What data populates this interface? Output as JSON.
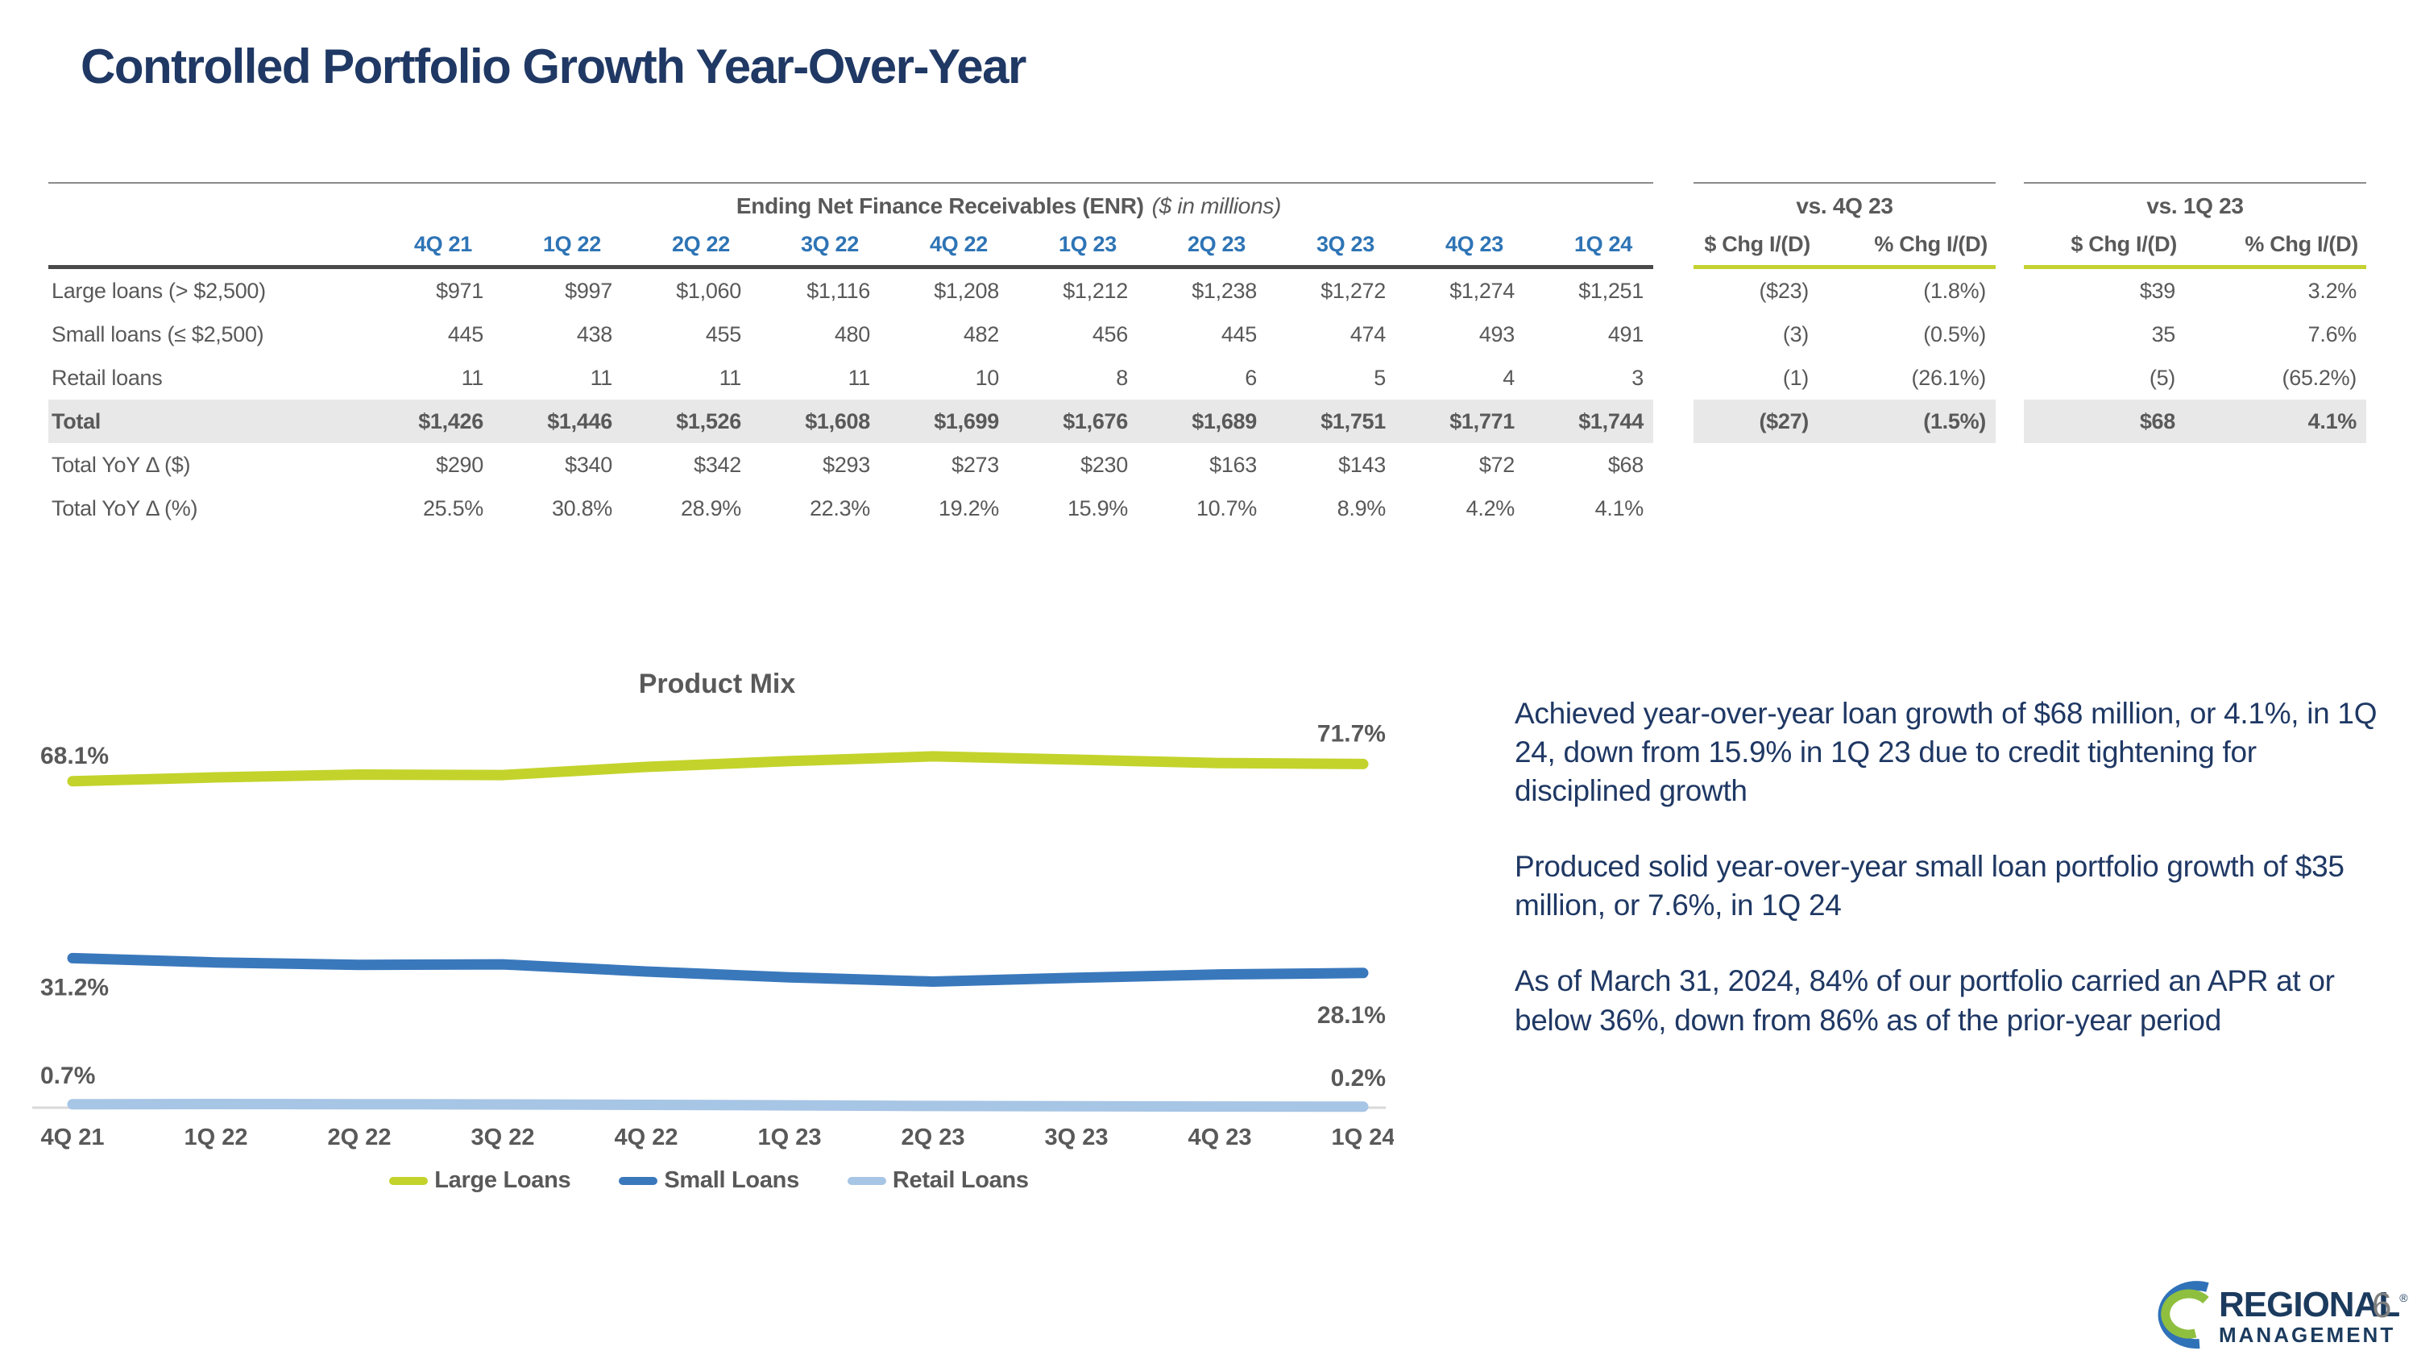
{
  "slide": {
    "title": "Controlled Portfolio Growth Year-Over-Year",
    "page_number": "6"
  },
  "table": {
    "main_header": "Ending Net Finance Receivables (ENR)",
    "main_header_note": "($ in millions)",
    "quarters": [
      "4Q 21",
      "1Q 22",
      "2Q 22",
      "3Q 22",
      "4Q 22",
      "1Q 23",
      "2Q 23",
      "3Q 23",
      "4Q 23",
      "1Q 24"
    ],
    "vs_sections": [
      {
        "title": "vs. 4Q 23",
        "col_headers": [
          "$ Chg I/(D)",
          "% Chg I/(D)"
        ]
      },
      {
        "title": "vs. 1Q 23",
        "col_headers": [
          "$ Chg I/(D)",
          "% Chg I/(D)"
        ]
      }
    ],
    "rows": [
      {
        "label": "Large loans (> $2,500)",
        "style": "normal",
        "values": [
          "$971",
          "$997",
          "$1,060",
          "$1,116",
          "$1,208",
          "$1,212",
          "$1,238",
          "$1,272",
          "$1,274",
          "$1,251"
        ],
        "vs4q23": [
          "($23)",
          "(1.8%)"
        ],
        "vs1q23": [
          "$39",
          "3.2%"
        ]
      },
      {
        "label": "Small loans (≤ $2,500)",
        "style": "normal",
        "values": [
          "445",
          "438",
          "455",
          "480",
          "482",
          "456",
          "445",
          "474",
          "493",
          "491"
        ],
        "vs4q23": [
          "(3)",
          "(0.5%)"
        ],
        "vs1q23": [
          "35",
          "7.6%"
        ]
      },
      {
        "label": "Retail loans",
        "style": "normal",
        "values": [
          "11",
          "11",
          "11",
          "11",
          "10",
          "8",
          "6",
          "5",
          "4",
          "3"
        ],
        "vs4q23": [
          "(1)",
          "(26.1%)"
        ],
        "vs1q23": [
          "(5)",
          "(65.2%)"
        ]
      },
      {
        "label": "Total",
        "style": "total",
        "values": [
          "$1,426",
          "$1,446",
          "$1,526",
          "$1,608",
          "$1,699",
          "$1,676",
          "$1,689",
          "$1,751",
          "$1,771",
          "$1,744"
        ],
        "vs4q23": [
          "($27)",
          "(1.5%)"
        ],
        "vs1q23": [
          "$68",
          "4.1%"
        ]
      },
      {
        "label": "Total YoY Δ ($)",
        "style": "normal",
        "values": [
          "$290",
          "$340",
          "$342",
          "$293",
          "$273",
          "$230",
          "$163",
          "$143",
          "$72",
          "$68"
        ],
        "vs4q23": [
          "",
          ""
        ],
        "vs1q23": [
          "",
          ""
        ]
      },
      {
        "label": "Total YoY Δ (%)",
        "style": "normal",
        "values": [
          "25.5%",
          "30.8%",
          "28.9%",
          "22.3%",
          "19.2%",
          "15.9%",
          "10.7%",
          "8.9%",
          "4.2%",
          "4.1%"
        ],
        "vs4q23": [
          "",
          ""
        ],
        "vs1q23": [
          "",
          ""
        ]
      }
    ]
  },
  "chart_data": {
    "type": "line",
    "title": "Product Mix",
    "categories": [
      "4Q 21",
      "1Q 22",
      "2Q 22",
      "3Q 22",
      "4Q 22",
      "1Q 23",
      "2Q 23",
      "3Q 23",
      "4Q 23",
      "1Q 24"
    ],
    "series": [
      {
        "name": "Large Loans",
        "color": "#c3d32b",
        "values": [
          68.1,
          68.9,
          69.5,
          69.4,
          71.1,
          72.3,
          73.3,
          72.6,
          71.9,
          71.7
        ],
        "start_label": "68.1%",
        "end_label": "71.7%"
      },
      {
        "name": "Small Loans",
        "color": "#3a78bc",
        "values": [
          31.2,
          30.3,
          29.8,
          29.9,
          28.4,
          27.2,
          26.3,
          27.1,
          27.8,
          28.1
        ],
        "start_label": "31.2%",
        "end_label": "28.1%"
      },
      {
        "name": "Retail Loans",
        "color": "#a7c5e5",
        "values": [
          0.7,
          0.76,
          0.72,
          0.68,
          0.59,
          0.48,
          0.36,
          0.29,
          0.23,
          0.2
        ],
        "start_label": "0.7%",
        "end_label": "0.2%"
      }
    ],
    "ylim": [
      0,
      100
    ],
    "grid": false,
    "legend_position": "bottom"
  },
  "bullets": [
    "Achieved year-over-year loan growth of $68 million, or 4.1%, in 1Q 24, down from 15.9% in 1Q 23 due to credit tightening for disciplined growth",
    "Produced solid year-over-year small loan portfolio growth of $35 million, or 7.6%, in 1Q 24",
    "As of March 31, 2024, 84% of our portfolio carried an APR at or below 36%, down from 86% as of the prior-year period"
  ],
  "logo": {
    "name_top": "REGIONAL",
    "reg_mark": "®",
    "name_bottom": "MANAGEMENT"
  }
}
